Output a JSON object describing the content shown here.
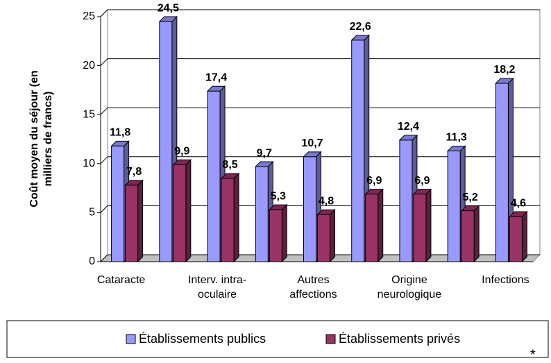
{
  "chart_data": {
    "type": "bar3d",
    "ylabel": "Coût moyen du séjour (en\nmilliers de francs)",
    "categories": [
      "Cataracte",
      null,
      "Interv. intra-\noculaire",
      null,
      "Autres\naffections",
      null,
      "Origine\nneurologique",
      null,
      "Infections"
    ],
    "series": [
      {
        "name": "Établissements publics",
        "color": "#9999ff",
        "values": [
          11.8,
          24.5,
          17.4,
          9.7,
          10.7,
          22.6,
          12.4,
          11.3,
          18.2
        ],
        "value_labels": [
          "11,8",
          "24,5",
          "17,4",
          "9,7",
          "10,7",
          "22,6",
          "12,4",
          "11,3",
          "18,2"
        ]
      },
      {
        "name": "Établissements privés",
        "color": "#993366",
        "values": [
          7.8,
          9.9,
          8.5,
          5.3,
          4.8,
          6.9,
          6.9,
          5.2,
          4.6
        ],
        "value_labels": [
          "7,8",
          "9,9",
          "8,5",
          "5,3",
          "4,8",
          "6,9",
          "6,9",
          "5,2",
          "4,6"
        ]
      }
    ],
    "ylim": [
      0,
      25
    ],
    "yticks": [
      0,
      5,
      10,
      15,
      20,
      25
    ],
    "grid": true,
    "legend": "bottom",
    "footnote_mark": "*"
  }
}
